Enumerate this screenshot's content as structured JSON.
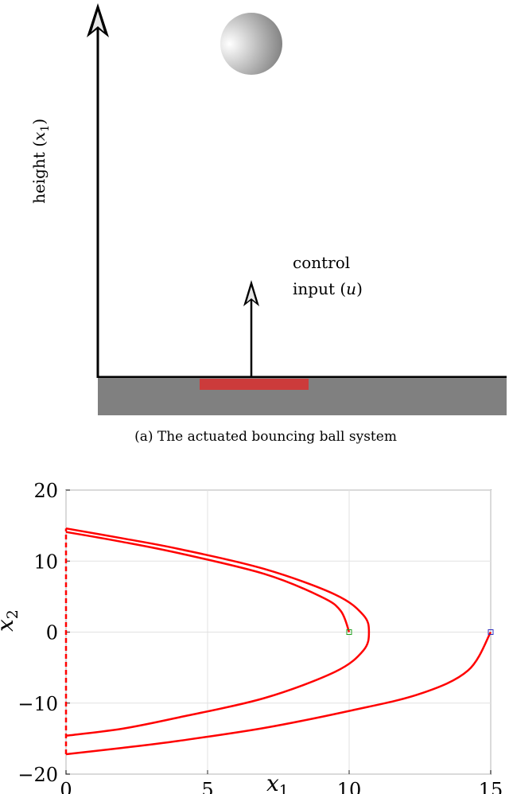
{
  "diagram": {
    "height_label": {
      "text": "height (",
      "var": "x",
      "sub": "1",
      "close": ")"
    },
    "control_label": {
      "line1": "control",
      "line2": "input (",
      "var": "u",
      "close": ")"
    },
    "caption": "(a) The actuated bouncing ball system",
    "colors": {
      "ground": "#808080",
      "actuator": "#cc3b3b",
      "arrow": "#000000",
      "ball_light": "#ffffff",
      "ball_dark": "#7a7a7a"
    }
  },
  "chart_data": {
    "type": "line",
    "xlabel": {
      "var": "x",
      "sub": "1"
    },
    "ylabel": {
      "var": "x",
      "sub": "2"
    },
    "xlim": [
      0,
      15
    ],
    "ylim": [
      -20,
      20
    ],
    "xticks": [
      "0",
      "5",
      "10",
      "15"
    ],
    "yticks": [
      "20",
      "10",
      "0",
      "-10",
      "-20"
    ],
    "grid": true,
    "series_color": "#ff0000",
    "series": [
      {
        "x": [
          15,
          14.2,
          12.5,
          10,
          7,
          4,
          2,
          0
        ],
        "y": [
          0,
          -5.4,
          -8.7,
          -11.1,
          -13.5,
          -15.3,
          -16.3,
          -17.2
        ]
      },
      {
        "x": [
          0,
          2,
          4,
          7,
          9.5,
          10.5,
          10.7,
          10.5,
          9.5,
          7,
          4,
          2,
          0
        ],
        "y": [
          -14.6,
          -13.6,
          -12.0,
          -9.3,
          -5.6,
          -2.6,
          0,
          2.4,
          5.3,
          8.9,
          11.7,
          13.2,
          14.6
        ]
      },
      {
        "x": [
          0,
          2,
          4,
          7,
          9,
          9.7,
          10
        ],
        "y": [
          14.1,
          12.7,
          11.1,
          8.2,
          5.0,
          3.0,
          0
        ]
      }
    ],
    "jump_segments": [
      {
        "x": 0,
        "y_from": -17.2,
        "y_to": 14.6
      }
    ],
    "markers": [
      {
        "x": 10,
        "y": 0,
        "color": "#20a020"
      },
      {
        "x": 15,
        "y": 0,
        "color": "#3030c0"
      }
    ]
  }
}
